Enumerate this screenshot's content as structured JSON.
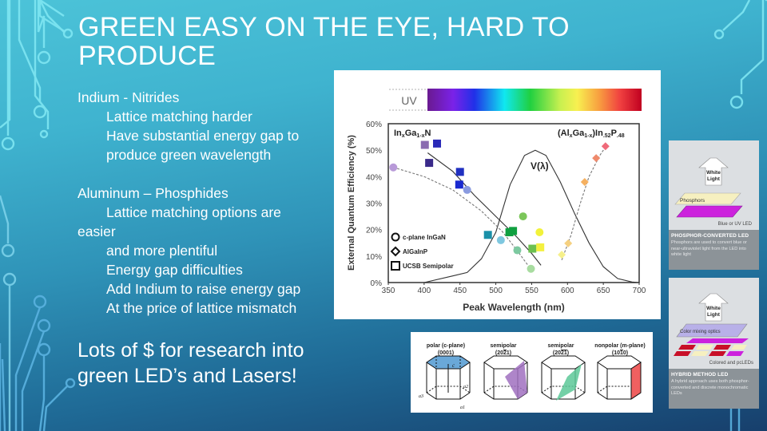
{
  "slide": {
    "title": "GREEN EASY ON THE EYE, HARD TO PRODUCE",
    "title_lines": [
      "GREEN EASY ON THE EYE, HARD TO",
      "PRODUCE"
    ],
    "body": {
      "section1_heading": "Indium - Nitrides",
      "section1_items": [
        "Lattice matching harder",
        "Have substantial energy gap to",
        "produce green wavelength"
      ],
      "section2_heading": "Aluminum – Phosphides",
      "section2_items": [
        "Lattice matching options are",
        "easier",
        "and more plentiful",
        "Energy gap difficulties",
        "Add Indium to raise energy gap",
        "At the price of lattice mismatch"
      ]
    },
    "callout_lines": [
      "Lots of $ for research into",
      "green LED’s and Lasers!"
    ],
    "colors": {
      "background_top": "#4cc3d8",
      "background_bottom": "#173f6c",
      "circuit_lines": "#7fe6f2",
      "text": "#ffffff"
    }
  },
  "chart_data": {
    "type": "scatter",
    "title": "",
    "xlabel": "Peak Wavelength (nm)",
    "ylabel": "External Quantum Efficiency (%)",
    "xlim": [
      350,
      700
    ],
    "ylim": [
      0,
      60
    ],
    "x_ticks": [
      "350",
      "400",
      "450",
      "500",
      "550",
      "600",
      "650",
      "700"
    ],
    "y_ticks": [
      "0%",
      "10%",
      "20%",
      "30%",
      "40%",
      "50%",
      "60%"
    ],
    "spectrum_bar_label": "UV",
    "annotations": {
      "left_material": "InxGa1-xN",
      "right_material": "(AlxGa1-x)In.52P.48",
      "curve_label": "V(λ)"
    },
    "legend": [
      {
        "shape": "circle",
        "label": "c-plane InGaN"
      },
      {
        "shape": "diamond",
        "label": "AlGaInP"
      },
      {
        "shape": "square",
        "label": "UCSB Semipolar"
      }
    ],
    "legend_position": "lower-left",
    "series": [
      {
        "name": "c-plane InGaN",
        "marker": "circle",
        "points": [
          {
            "x": 357,
            "y": 43.5,
            "color": "#b89ad8"
          },
          {
            "x": 460,
            "y": 35,
            "color": "#8a9be0"
          },
          {
            "x": 507,
            "y": 16,
            "color": "#7fc8e0"
          },
          {
            "x": 530,
            "y": 12.2,
            "color": "#7dc9a0"
          },
          {
            "x": 538,
            "y": 25,
            "color": "#7cc65a"
          },
          {
            "x": 549,
            "y": 5.2,
            "color": "#a8dca0"
          },
          {
            "x": 561,
            "y": 19,
            "color": "#f2f23a"
          }
        ]
      },
      {
        "name": "AlGaInP",
        "marker": "diamond",
        "points": [
          {
            "x": 592,
            "y": 10.5,
            "color": "#f6f08a"
          },
          {
            "x": 601,
            "y": 14.8,
            "color": "#f5d080"
          },
          {
            "x": 624,
            "y": 38,
            "color": "#f5b060"
          },
          {
            "x": 640,
            "y": 47,
            "color": "#ef8a6c"
          },
          {
            "x": 653,
            "y": 51.5,
            "color": "#ef6a7a"
          }
        ]
      },
      {
        "name": "UCSB Semipolar",
        "marker": "square",
        "points": [
          {
            "x": 401,
            "y": 52,
            "color": "#8a6ab0"
          },
          {
            "x": 418,
            "y": 52.5,
            "color": "#2a2ab8"
          },
          {
            "x": 407,
            "y": 45.2,
            "color": "#3a2a8a"
          },
          {
            "x": 450,
            "y": 41.8,
            "color": "#2030c0"
          },
          {
            "x": 449,
            "y": 37,
            "color": "#1a2ad0"
          },
          {
            "x": 489,
            "y": 18,
            "color": "#1a90a8"
          },
          {
            "x": 519,
            "y": 19,
            "color": "#10a040"
          },
          {
            "x": 524,
            "y": 19.5,
            "color": "#10a040"
          },
          {
            "x": 551,
            "y": 12.8,
            "color": "#6cc050"
          },
          {
            "x": 562,
            "y": 13.3,
            "color": "#f4f040"
          }
        ]
      }
    ],
    "curves": [
      {
        "name": "V(lambda) photopic",
        "style": "solid",
        "points": [
          [
            400,
            0
          ],
          [
            440,
            2.5
          ],
          [
            460,
            3.8
          ],
          [
            480,
            9
          ],
          [
            500,
            19
          ],
          [
            520,
            37
          ],
          [
            540,
            48
          ],
          [
            555,
            50
          ],
          [
            570,
            48
          ],
          [
            590,
            38
          ],
          [
            610,
            26
          ],
          [
            630,
            15
          ],
          [
            650,
            6
          ],
          [
            670,
            1.5
          ],
          [
            690,
            0.2
          ],
          [
            700,
            0
          ]
        ]
      },
      {
        "name": "InGaN c-plane trend",
        "style": "dashed",
        "points": [
          [
            357,
            43.5
          ],
          [
            400,
            40
          ],
          [
            440,
            35
          ],
          [
            480,
            27
          ],
          [
            510,
            19
          ],
          [
            530,
            12
          ],
          [
            549,
            5
          ]
        ]
      },
      {
        "name": "UCSB semipolar trend",
        "style": "solid",
        "points": [
          [
            405,
            49
          ],
          [
            440,
            42
          ],
          [
            470,
            33
          ],
          [
            500,
            25
          ],
          [
            530,
            17
          ],
          [
            550,
            11
          ],
          [
            563,
            6.5
          ]
        ]
      },
      {
        "name": "AlGaInP trend",
        "style": "dashed",
        "points": [
          [
            592,
            8.5
          ],
          [
            605,
            18
          ],
          [
            618,
            30
          ],
          [
            630,
            40
          ],
          [
            645,
            48
          ],
          [
            655,
            52
          ]
        ]
      }
    ],
    "grid": false
  },
  "side_cards": [
    {
      "diagram_labels": [
        "White Light",
        "Phosphors",
        "Blue or UV LED"
      ],
      "title": "PHOSPHOR-CONVERTED LED",
      "description": "Phosphors are used to convert blue or near-ultraviolet light from the LED into white light"
    },
    {
      "diagram_labels": [
        "White Light",
        "Color mixing optics",
        "Colored and pcLEDs"
      ],
      "title": "HYBRID METHOD LED",
      "description": "A hybrid approach uses both phosphor-converted and discrete monochromatic LEDs"
    }
  ],
  "crystal_planes": [
    {
      "name": "polar (c-plane)",
      "index": "(0001)",
      "plane_color": "#6aa8d8"
    },
    {
      "name": "semipolar",
      "index": "(20ŷ2ŷ1)",
      "index_display": "(20–2̅1)",
      "plane_color": "#a070c0"
    },
    {
      "name": "semipolar",
      "index_display": "(20–2̅1̅)",
      "plane_color": "#5cc898"
    },
    {
      "name": "nonpolar (m-plane)",
      "index_display": "(101̅0)",
      "plane_color": "#f06060"
    }
  ],
  "crystal_axes": {
    "c": "c",
    "a1": "a1",
    "a2": "a2",
    "a3": "a3"
  }
}
